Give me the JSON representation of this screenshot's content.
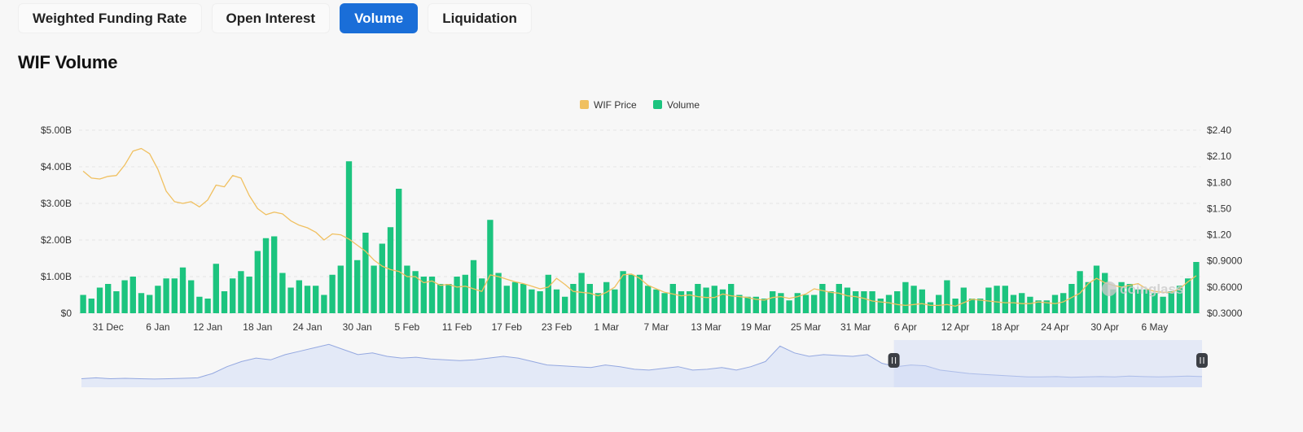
{
  "tabs": [
    {
      "label": "Weighted Funding Rate",
      "active": false
    },
    {
      "label": "Open Interest",
      "active": false
    },
    {
      "label": "Volume",
      "active": true
    },
    {
      "label": "Liquidation",
      "active": false
    }
  ],
  "colors": {
    "accent": "#1a6ed8",
    "volume": "#1cc47f",
    "price": "#f0c060",
    "navigator_fill": "#dfe6f7",
    "navigator_line": "#94a8e0"
  },
  "watermark": "coinglass",
  "chart_data": {
    "type": "bar",
    "title": "WIF Volume",
    "legend": {
      "placement": "top-center",
      "items": [
        "WIF Price",
        "Volume"
      ]
    },
    "x_tick_labels": [
      "31 Dec",
      "6 Jan",
      "12 Jan",
      "18 Jan",
      "24 Jan",
      "30 Jan",
      "5 Feb",
      "11 Feb",
      "17 Feb",
      "23 Feb",
      "1 Mar",
      "7 Mar",
      "13 Mar",
      "19 Mar",
      "25 Mar",
      "31 Mar",
      "6 Apr",
      "12 Apr",
      "18 Apr",
      "24 Apr",
      "30 Apr",
      "6 May"
    ],
    "left_axis": {
      "ticks": [
        "$0",
        "$1.00B",
        "$2.00B",
        "$3.00B",
        "$4.00B",
        "$5.00B"
      ],
      "range": [
        0,
        5
      ]
    },
    "right_axis": {
      "ticks": [
        "$0.3000",
        "$0.6000",
        "$0.9000",
        "$1.20",
        "$1.50",
        "$1.80",
        "$2.10",
        "$2.40"
      ],
      "range": [
        0.3,
        2.4
      ]
    },
    "grid": true,
    "series": [
      {
        "name": "Volume",
        "unit": "USD billions",
        "axis": "left",
        "values": [
          0.5,
          0.4,
          0.7,
          0.8,
          0.6,
          0.9,
          1.0,
          0.55,
          0.5,
          0.75,
          0.95,
          0.95,
          1.25,
          0.9,
          0.45,
          0.4,
          1.35,
          0.6,
          0.95,
          1.15,
          1.0,
          1.7,
          2.05,
          2.1,
          1.1,
          0.7,
          0.9,
          0.75,
          0.75,
          0.5,
          1.05,
          1.3,
          4.15,
          1.45,
          2.2,
          1.3,
          1.9,
          2.35,
          3.4,
          1.3,
          1.15,
          1.0,
          1.0,
          0.8,
          0.8,
          1.0,
          1.05,
          1.45,
          0.95,
          2.55,
          1.1,
          0.75,
          0.85,
          0.8,
          0.65,
          0.6,
          1.05,
          0.65,
          0.45,
          0.8,
          1.1,
          0.8,
          0.55,
          0.85,
          0.65,
          1.15,
          1.05,
          1.05,
          0.75,
          0.65,
          0.55,
          0.8,
          0.6,
          0.6,
          0.8,
          0.7,
          0.75,
          0.65,
          0.8,
          0.5,
          0.45,
          0.45,
          0.4,
          0.6,
          0.55,
          0.35,
          0.55,
          0.5,
          0.5,
          0.8,
          0.6,
          0.8,
          0.7,
          0.6,
          0.6,
          0.6,
          0.4,
          0.5,
          0.6,
          0.85,
          0.75,
          0.65,
          0.3,
          0.5,
          0.9,
          0.4,
          0.7,
          0.4,
          0.4,
          0.7,
          0.75,
          0.75,
          0.5,
          0.55,
          0.45,
          0.35,
          0.35,
          0.5,
          0.55,
          0.8,
          1.15,
          0.85,
          1.3,
          1.1,
          0.65,
          0.85,
          0.8,
          0.65,
          0.65,
          0.55,
          0.45,
          0.6,
          0.75,
          0.95,
          1.4
        ]
      },
      {
        "name": "WIF Price",
        "unit": "USD",
        "axis": "right",
        "values": [
          1.93,
          1.85,
          1.84,
          1.87,
          1.88,
          2.0,
          2.16,
          2.19,
          2.13,
          1.95,
          1.7,
          1.58,
          1.56,
          1.58,
          1.52,
          1.6,
          1.77,
          1.75,
          1.88,
          1.85,
          1.65,
          1.5,
          1.43,
          1.46,
          1.44,
          1.36,
          1.31,
          1.28,
          1.23,
          1.14,
          1.21,
          1.2,
          1.15,
          1.08,
          1.01,
          0.91,
          0.84,
          0.8,
          0.78,
          0.72,
          0.72,
          0.65,
          0.67,
          0.62,
          0.63,
          0.6,
          0.61,
          0.58,
          0.55,
          0.74,
          0.72,
          0.69,
          0.66,
          0.64,
          0.61,
          0.58,
          0.6,
          0.7,
          0.63,
          0.55,
          0.54,
          0.53,
          0.5,
          0.54,
          0.6,
          0.74,
          0.75,
          0.7,
          0.62,
          0.58,
          0.54,
          0.52,
          0.5,
          0.51,
          0.49,
          0.48,
          0.48,
          0.52,
          0.5,
          0.49,
          0.48,
          0.46,
          0.45,
          0.48,
          0.49,
          0.47,
          0.49,
          0.52,
          0.58,
          0.56,
          0.54,
          0.53,
          0.5,
          0.49,
          0.47,
          0.44,
          0.43,
          0.42,
          0.4,
          0.39,
          0.4,
          0.41,
          0.39,
          0.39,
          0.4,
          0.38,
          0.42,
          0.46,
          0.45,
          0.44,
          0.43,
          0.42,
          0.42,
          0.41,
          0.41,
          0.43,
          0.42,
          0.41,
          0.43,
          0.48,
          0.53,
          0.64,
          0.7,
          0.65,
          0.62,
          0.6,
          0.62,
          0.64,
          0.58,
          0.55,
          0.54,
          0.54,
          0.58,
          0.66,
          0.73
        ]
      }
    ],
    "navigator": {
      "selection_start_fraction": 0.725,
      "selection_end_fraction": 1.0,
      "values": [
        0.5,
        0.55,
        0.5,
        0.52,
        0.5,
        0.48,
        0.5,
        0.52,
        0.55,
        0.8,
        1.2,
        1.5,
        1.7,
        1.6,
        1.9,
        2.1,
        2.3,
        2.5,
        2.2,
        1.9,
        2.0,
        1.8,
        1.7,
        1.75,
        1.65,
        1.6,
        1.55,
        1.6,
        1.7,
        1.8,
        1.7,
        1.5,
        1.3,
        1.25,
        1.2,
        1.15,
        1.3,
        1.2,
        1.05,
        1.0,
        1.1,
        1.2,
        1.0,
        1.05,
        1.15,
        1.0,
        1.2,
        1.5,
        2.4,
        2.0,
        1.8,
        1.9,
        1.85,
        1.8,
        1.9,
        1.4,
        1.2,
        1.3,
        1.25,
        1.0,
        0.9,
        0.8,
        0.75,
        0.7,
        0.65,
        0.6,
        0.6,
        0.62,
        0.58,
        0.6,
        0.62,
        0.6,
        0.65,
        0.62,
        0.6,
        0.62,
        0.65,
        0.62
      ]
    }
  }
}
